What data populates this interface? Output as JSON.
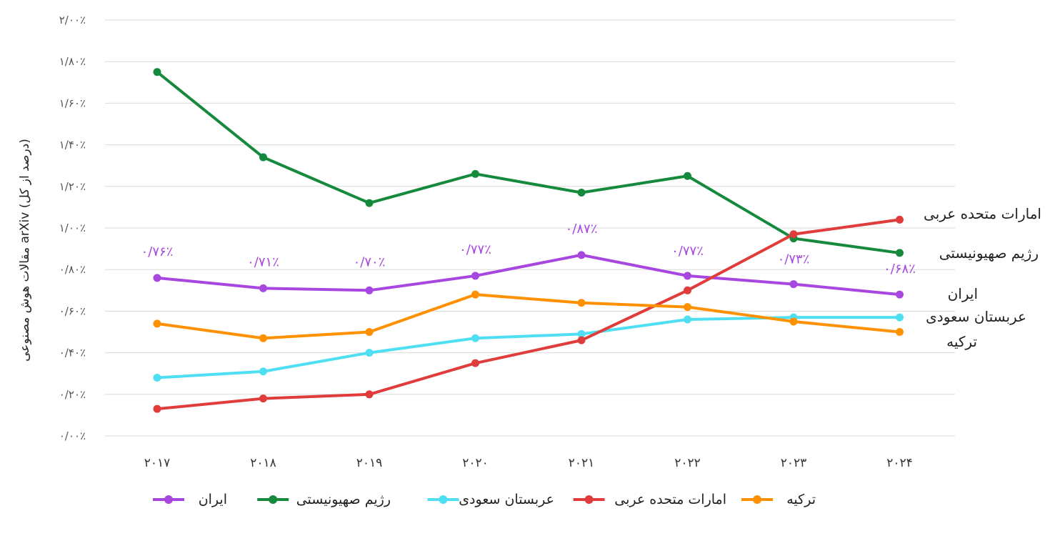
{
  "chart_data": {
    "type": "line",
    "ylabel": "مقالات هوش مصنوعی arXiv (درصد از کل)",
    "xlabel": "",
    "x": [
      "۲۰۱۷",
      "۲۰۱۸",
      "۲۰۱۹",
      "۲۰۲۰",
      "۲۰۲۱",
      "۲۰۲۲",
      "۲۰۲۳",
      "۲۰۲۴"
    ],
    "ylim": [
      0,
      2.0
    ],
    "y_ticks": [
      "۰/۰۰٪",
      "۰/۲۰٪",
      "۰/۴۰٪",
      "۰/۶۰٪",
      "۰/۸۰٪",
      "۱/۰۰٪",
      "۱/۲۰٪",
      "۱/۴۰٪",
      "۱/۶۰٪",
      "۱/۸۰٪",
      "۲/۰۰٪"
    ],
    "grid": true,
    "legend": "bottom",
    "series": [
      {
        "name": "ایران",
        "color": "#a846e0",
        "values": [
          0.76,
          0.71,
          0.7,
          0.77,
          0.87,
          0.77,
          0.73,
          0.68
        ],
        "labels": [
          "۰/۷۶٪",
          "۰/۷۱٪",
          "۰/۷۰٪",
          "۰/۷۷٪",
          "۰/۸۷٪",
          "۰/۷۷٪",
          "۰/۷۳٪",
          "۰/۶۸٪"
        ]
      },
      {
        "name": "رژیم صهیونیستی",
        "color": "#168a3c",
        "values": [
          1.75,
          1.34,
          1.12,
          1.26,
          1.17,
          1.25,
          0.95,
          0.88
        ]
      },
      {
        "name": "عربستان سعودی",
        "color": "#4fdff2",
        "values": [
          0.28,
          0.31,
          0.4,
          0.47,
          0.49,
          0.56,
          0.57,
          0.57
        ]
      },
      {
        "name": "امارات متحده عربی",
        "color": "#e03c3c",
        "values": [
          0.13,
          0.18,
          0.2,
          0.35,
          0.46,
          0.7,
          0.97,
          1.04
        ]
      },
      {
        "name": "ترکیه",
        "color": "#ff9100",
        "values": [
          0.54,
          0.47,
          0.5,
          0.68,
          0.64,
          0.62,
          0.55,
          0.5
        ]
      }
    ],
    "end_labels": [
      {
        "text": "امارات متحده عربی"
      },
      {
        "text": "رژیم صهیونیستی"
      },
      {
        "text": "ایران"
      },
      {
        "text": "عربستان سعودی"
      },
      {
        "text": "ترکیه"
      }
    ]
  }
}
